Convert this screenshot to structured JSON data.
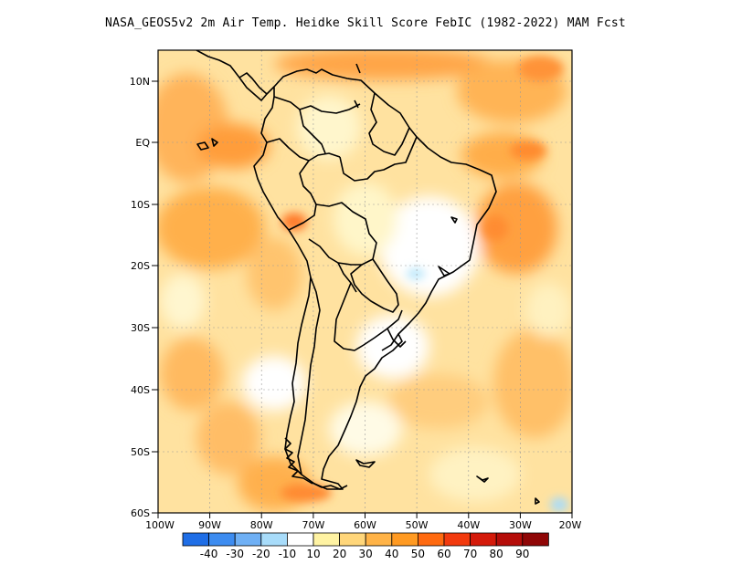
{
  "title": "NASA_GEOS5v2  2m Air Temp. Heidke Skill Score FebIC (1982-2022) MAM Fcst",
  "map": {
    "lat_labels": [
      "10N",
      "EQ",
      "10S",
      "20S",
      "30S",
      "40S",
      "50S",
      "60S"
    ],
    "lon_labels": [
      "100W",
      "90W",
      "80W",
      "70W",
      "60W",
      "50W",
      "40W",
      "30W",
      "20W"
    ],
    "extent": {
      "lon_min": -100,
      "lon_max": -20,
      "lat_min": -60,
      "lat_max": 15
    },
    "grid": true
  },
  "colorbar": {
    "labels": [
      "-40",
      "-30",
      "-20",
      "-10",
      "10",
      "20",
      "30",
      "40",
      "50",
      "60",
      "70",
      "80",
      "90"
    ],
    "colors": [
      "#1f6ee6",
      "#3d8cf0",
      "#6fb0f5",
      "#a8dcfa",
      "#ffffff",
      "#fff3a3",
      "#ffd67a",
      "#ffb347",
      "#ff9a22",
      "#ff6a10",
      "#f23a0e",
      "#d41a0a",
      "#b50d09",
      "#8f0606"
    ]
  }
}
